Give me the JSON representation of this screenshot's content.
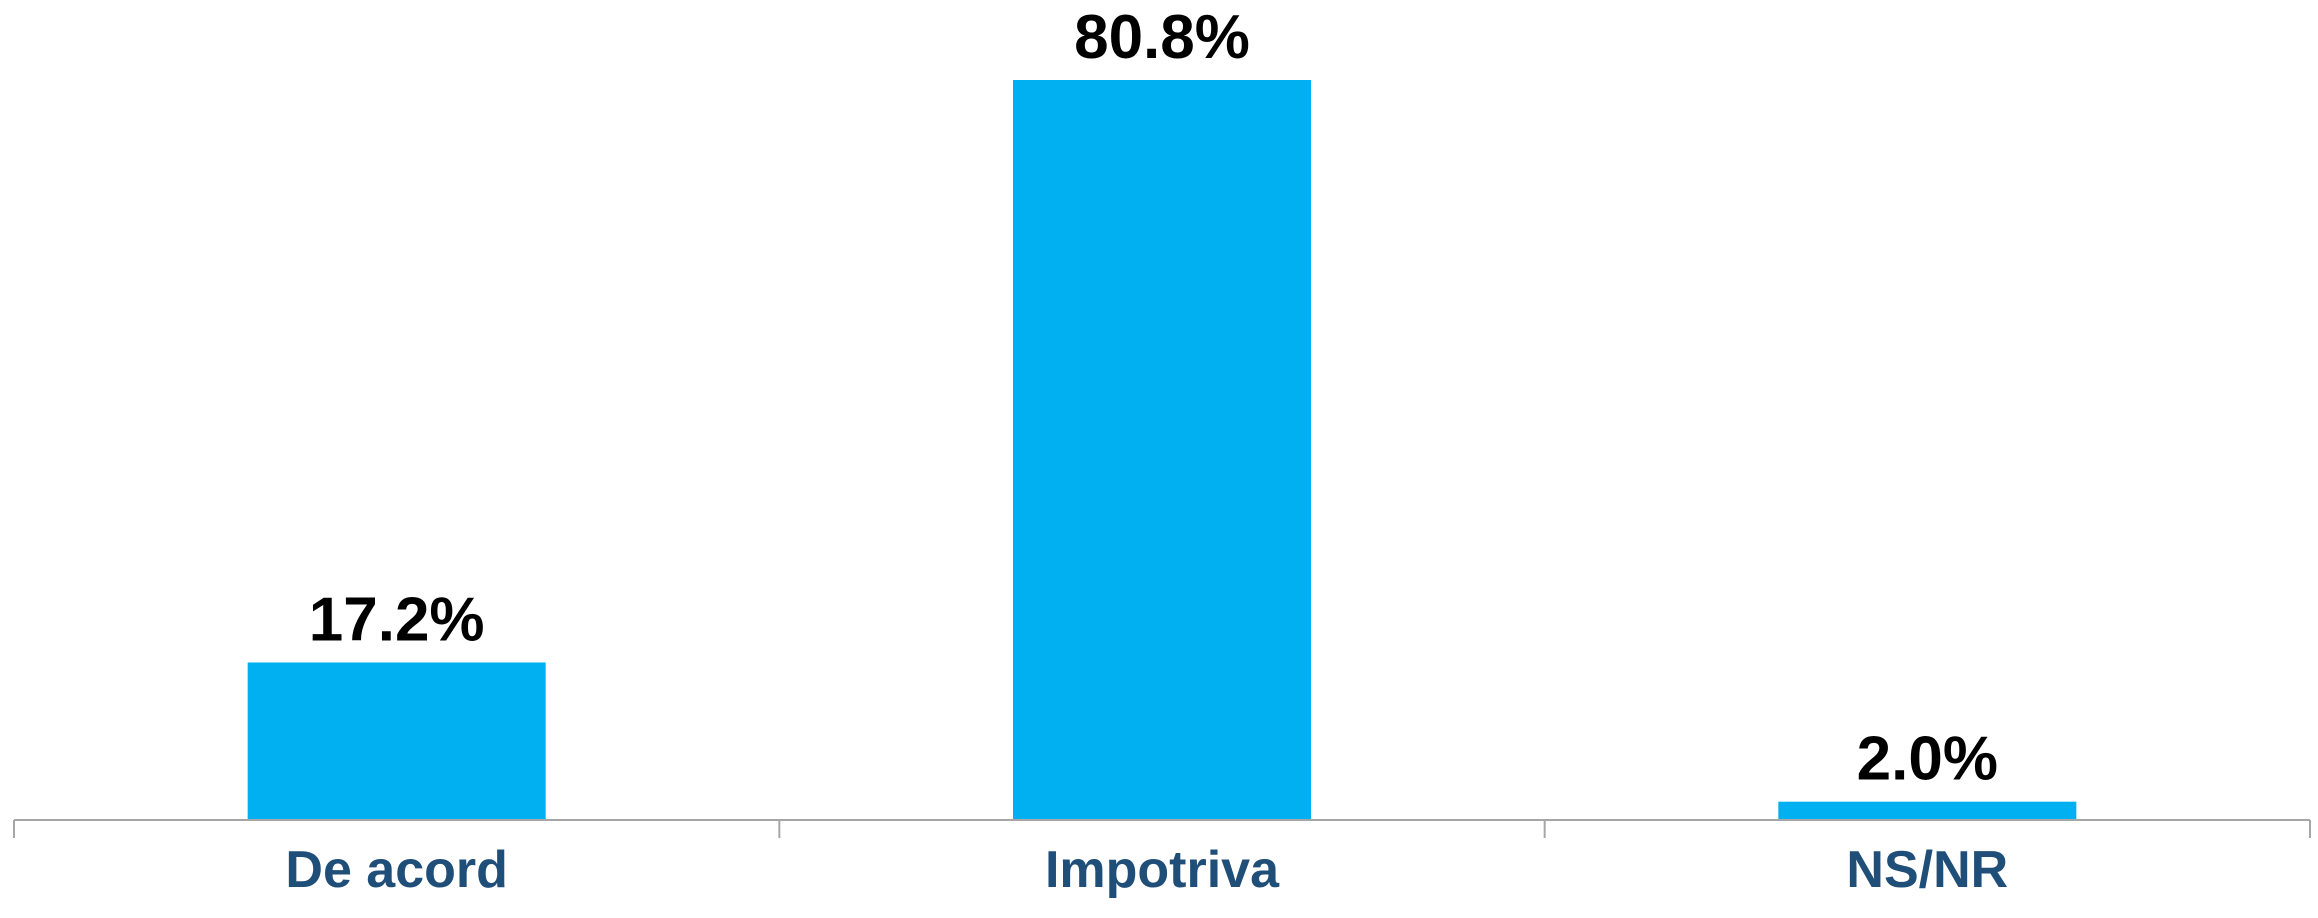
{
  "chart_data": {
    "type": "bar",
    "categories": [
      "De acord",
      "Impotriva",
      "NS/NR"
    ],
    "values": [
      17.2,
      80.8,
      2.0
    ],
    "value_labels": [
      "17.2%",
      "80.8%",
      "2.0%"
    ],
    "title": "",
    "xlabel": "",
    "ylabel": "",
    "ylim": [
      0,
      80.8
    ],
    "grid": false,
    "legend": "none",
    "bar_color": "#00B0F0",
    "axis_color": "#A6A6A6",
    "value_label_color": "#000000",
    "category_label_color": "#1F4E79"
  }
}
